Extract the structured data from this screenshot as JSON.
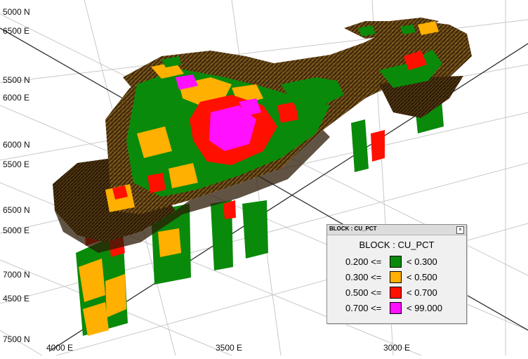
{
  "viewport": {
    "axis_labels": {
      "top_left_north": "5000 N",
      "top_left_east": "6500 E",
      "mid_north_a": "5500 N",
      "mid_east_a": "6000 E",
      "mid_north_b": "6000 N",
      "mid_east_b": "5500 E",
      "low_north_a": "6500 N",
      "low_east_a": "5000 E",
      "low_north_b": "7000 N",
      "low_east_b": "4500 E",
      "bottom_north": "7500 N",
      "bottom_east_1": "4000 E",
      "bottom_east_2": "3500 E",
      "bottom_east_3": "3000 E"
    }
  },
  "legend": {
    "window_title": "BLOCK : CU_PCT",
    "close_symbol": "×",
    "heading": "BLOCK : CU_PCT",
    "rows": [
      {
        "lower": "0.200 <=",
        "upper": "< 0.300",
        "color": "#0a8a0a"
      },
      {
        "lower": "0.300 <=",
        "upper": "< 0.500",
        "color": "#ffb000"
      },
      {
        "lower": "0.500 <=",
        "upper": "< 0.700",
        "color": "#ff1000"
      },
      {
        "lower": "0.700 <=",
        "upper": "< 99.000",
        "color": "#ff10ff"
      }
    ]
  },
  "colors": {
    "waste_block": "#6b4a16",
    "waste_block_dark": "#3b2608",
    "grid_line": "#c8c8c8",
    "axis_line": "#222222"
  }
}
